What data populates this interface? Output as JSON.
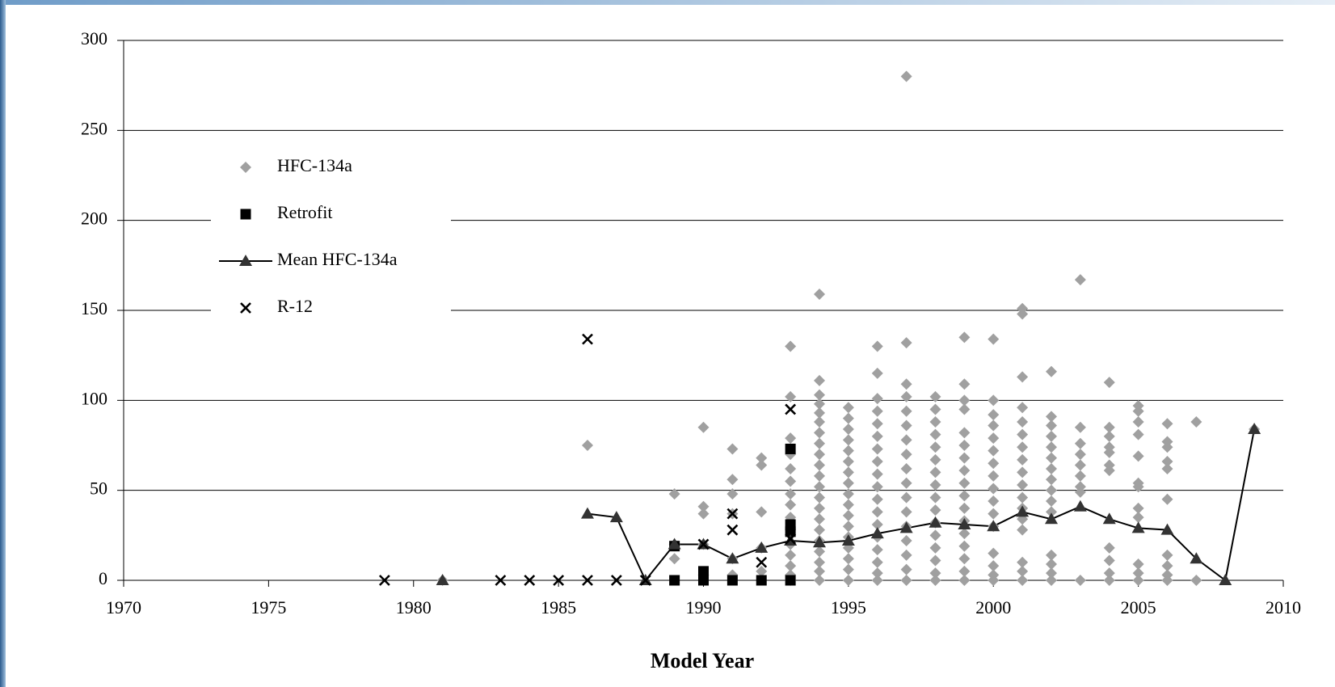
{
  "chart_data": {
    "type": "scatter",
    "xlabel": "Model Year",
    "xlim": [
      1970,
      2010
    ],
    "xticks": [
      1970,
      1975,
      1980,
      1985,
      1990,
      1995,
      2000,
      2005,
      2010
    ],
    "ylim": [
      0,
      300
    ],
    "yticks": [
      0,
      50,
      100,
      150,
      200,
      250,
      300
    ],
    "grid": true,
    "legend": "upper left",
    "series": [
      {
        "name": "HFC-134a",
        "color": "#a0a0a0",
        "marker": "diamond",
        "x": [
          1981,
          1986,
          1989,
          1989,
          1989,
          1990,
          1990,
          1990,
          1990,
          1990,
          1991,
          1991,
          1991,
          1991,
          1991,
          1991,
          1992,
          1992,
          1992,
          1992,
          1992,
          1993,
          1993,
          1993,
          1993,
          1993,
          1993,
          1993,
          1993,
          1993,
          1993,
          1993,
          1993,
          1993,
          1993,
          1993,
          1994,
          1994,
          1994,
          1994,
          1994,
          1994,
          1994,
          1994,
          1994,
          1994,
          1994,
          1994,
          1994,
          1994,
          1994,
          1994,
          1994,
          1994,
          1994,
          1994,
          1994,
          1995,
          1995,
          1995,
          1995,
          1995,
          1995,
          1995,
          1995,
          1995,
          1995,
          1995,
          1995,
          1995,
          1995,
          1995,
          1995,
          1995,
          1996,
          1996,
          1996,
          1996,
          1996,
          1996,
          1996,
          1996,
          1996,
          1996,
          1996,
          1996,
          1996,
          1996,
          1996,
          1996,
          1996,
          1996,
          1997,
          1997,
          1997,
          1997,
          1997,
          1997,
          1997,
          1997,
          1997,
          1997,
          1997,
          1997,
          1997,
          1997,
          1997,
          1997,
          1997,
          1998,
          1998,
          1998,
          1998,
          1998,
          1998,
          1998,
          1998,
          1998,
          1998,
          1998,
          1998,
          1998,
          1998,
          1998,
          1998,
          1999,
          1999,
          1999,
          1999,
          1999,
          1999,
          1999,
          1999,
          1999,
          1999,
          1999,
          1999,
          1999,
          1999,
          1999,
          1999,
          1999,
          2000,
          2000,
          2000,
          2000,
          2000,
          2000,
          2000,
          2000,
          2000,
          2000,
          2000,
          2000,
          2000,
          2000,
          2000,
          2000,
          2001,
          2001,
          2001,
          2001,
          2001,
          2001,
          2001,
          2001,
          2001,
          2001,
          2001,
          2001,
          2001,
          2001,
          2001,
          2001,
          2001,
          2002,
          2002,
          2002,
          2002,
          2002,
          2002,
          2002,
          2002,
          2002,
          2002,
          2002,
          2002,
          2002,
          2002,
          2002,
          2003,
          2003,
          2003,
          2003,
          2003,
          2003,
          2003,
          2003,
          2003,
          2004,
          2004,
          2004,
          2004,
          2004,
          2004,
          2004,
          2004,
          2004,
          2004,
          2004,
          2005,
          2005,
          2005,
          2005,
          2005,
          2005,
          2005,
          2005,
          2005,
          2005,
          2005,
          2005,
          2006,
          2006,
          2006,
          2006,
          2006,
          2006,
          2006,
          2006,
          2006,
          2006,
          2007,
          2007,
          2009
        ],
        "values": [
          0,
          75,
          48,
          12,
          20,
          85,
          41,
          37,
          20,
          3,
          73,
          56,
          48,
          37,
          12,
          3,
          68,
          64,
          38,
          18,
          5,
          130,
          102,
          79,
          70,
          62,
          55,
          48,
          42,
          35,
          28,
          20,
          14,
          8,
          3,
          0,
          159,
          111,
          103,
          98,
          93,
          88,
          82,
          76,
          70,
          64,
          58,
          52,
          46,
          40,
          34,
          28,
          22,
          16,
          10,
          5,
          0,
          96,
          90,
          84,
          78,
          72,
          66,
          60,
          54,
          48,
          42,
          36,
          30,
          24,
          18,
          12,
          6,
          0,
          130,
          115,
          101,
          94,
          87,
          80,
          73,
          66,
          59,
          52,
          45,
          38,
          31,
          24,
          17,
          10,
          4,
          0,
          280,
          132,
          109,
          102,
          94,
          86,
          78,
          70,
          62,
          54,
          46,
          38,
          30,
          22,
          14,
          6,
          0,
          102,
          95,
          88,
          81,
          74,
          67,
          60,
          53,
          46,
          39,
          32,
          25,
          18,
          11,
          4,
          0,
          135,
          109,
          100,
          95,
          82,
          75,
          68,
          61,
          54,
          47,
          40,
          33,
          26,
          19,
          12,
          5,
          0,
          134,
          100,
          92,
          86,
          79,
          72,
          65,
          58,
          51,
          44,
          37,
          30,
          15,
          8,
          3,
          0,
          151,
          148,
          113,
          96,
          88,
          81,
          74,
          67,
          60,
          53,
          46,
          40,
          34,
          28,
          10,
          5,
          0,
          116,
          91,
          86,
          80,
          74,
          68,
          62,
          56,
          50,
          44,
          38,
          14,
          9,
          4,
          0,
          167,
          85,
          76,
          70,
          64,
          58,
          52,
          49,
          0,
          110,
          85,
          80,
          74,
          71,
          64,
          61,
          18,
          11,
          4,
          0,
          97,
          94,
          88,
          81,
          69,
          54,
          52,
          40,
          35,
          9,
          4,
          0,
          87,
          77,
          74,
          66,
          62,
          45,
          14,
          8,
          3,
          0,
          88,
          0,
          84
        ]
      },
      {
        "name": "Retrofit",
        "color": "#000000",
        "marker": "square",
        "x": [
          1989,
          1989,
          1990,
          1990,
          1991,
          1992,
          1993,
          1993,
          1993,
          1993
        ],
        "values": [
          0,
          19,
          0,
          5,
          0,
          0,
          73,
          31,
          27,
          0
        ]
      },
      {
        "name": "Mean HFC-134a",
        "color": "#333333",
        "marker": "triangle",
        "line": true,
        "x": [
          1981,
          1986,
          1987,
          1988,
          1989,
          1990,
          1991,
          1992,
          1993,
          1994,
          1995,
          1996,
          1997,
          1998,
          1999,
          2000,
          2001,
          2002,
          2003,
          2004,
          2005,
          2006,
          2007,
          2008,
          2009
        ],
        "values": [
          0,
          37,
          35,
          0,
          20,
          20,
          12,
          18,
          22,
          21,
          22,
          26,
          29,
          32,
          31,
          30,
          38,
          34,
          41,
          34,
          29,
          28,
          12,
          0,
          84
        ]
      },
      {
        "name": "R-12",
        "color": "#000000",
        "marker": "x",
        "x": [
          1979,
          1983,
          1984,
          1985,
          1986,
          1986,
          1987,
          1988,
          1990,
          1991,
          1991,
          1992,
          1993,
          1993
        ],
        "values": [
          0,
          0,
          0,
          0,
          0,
          134,
          0,
          0,
          20,
          37,
          28,
          10,
          95,
          23
        ]
      }
    ]
  }
}
